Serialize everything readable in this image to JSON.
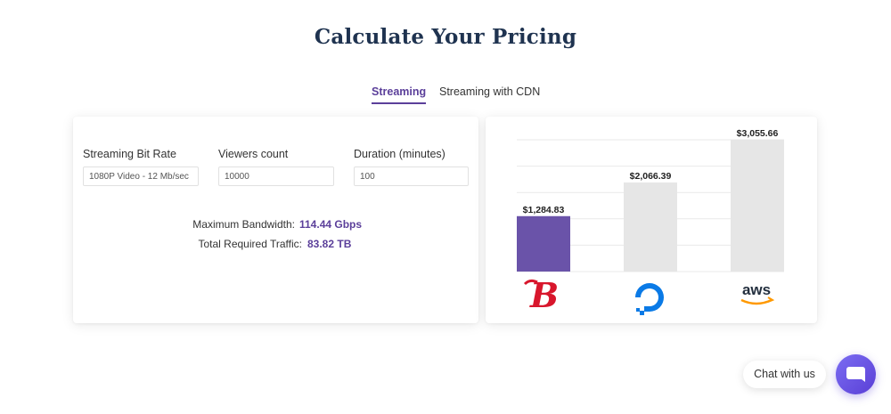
{
  "page": {
    "title": "Calculate Your Pricing"
  },
  "tabs": [
    {
      "label": "Streaming",
      "active": true
    },
    {
      "label": "Streaming with CDN",
      "active": false
    }
  ],
  "form": {
    "fields": [
      {
        "label": "Streaming Bit Rate",
        "value": "1080P Video - 12 Mb/sec"
      },
      {
        "label": "Viewers count",
        "value": "10000"
      },
      {
        "label": "Duration (minutes)",
        "value": "100"
      }
    ],
    "stats": [
      {
        "label": "Maximum Bandwidth:",
        "value": "114.44 Gbps"
      },
      {
        "label": "Total Required Traffic:",
        "value": "83.82 TB"
      }
    ]
  },
  "chart_data": {
    "type": "bar",
    "categories": [
      "B-logo",
      "digitalocean-logo",
      "aws-logo"
    ],
    "values": [
      1284.83,
      2066.39,
      3055.66
    ],
    "value_labels": [
      "$1,284.83",
      "$2,066.39",
      "$3,055.66"
    ],
    "ylim": [
      0,
      3055.66
    ],
    "grid": true,
    "colors": {
      "highlight": "#6a53a9",
      "other": "#e6e6e6"
    }
  },
  "providers": {
    "aws_text": "aws"
  },
  "chat": {
    "label": "Chat with us"
  },
  "colors": {
    "accent": "#5b3f9a",
    "title": "#1f3350"
  }
}
